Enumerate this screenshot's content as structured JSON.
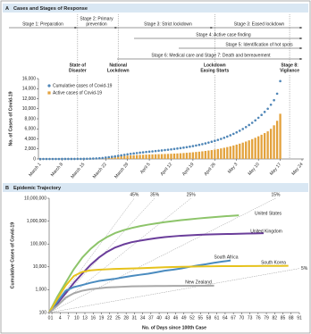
{
  "chart_data": [
    {
      "type": "combo",
      "panel": "A",
      "title": "Cases and Stages of Response",
      "y_label": "No. of Cases of Covid-19",
      "stages": [
        [
          "Stage 1: Preparation"
        ],
        [
          "Stage 2: Primary",
          "prevention"
        ],
        [
          "Stage 3: Strict lockdown"
        ],
        [
          "Stage 3: Eased lockdown"
        ],
        [
          "Stage 4: Active case finding"
        ],
        [
          "Stage 5: Identification of hot spots"
        ],
        [
          "Stage 6: Medical care and Stage 7: Death and bereavement"
        ]
      ],
      "events": [
        [
          "State of",
          "Disaster"
        ],
        [
          "National",
          "Lockdown"
        ],
        [
          "Lockdown",
          "Easing Starts"
        ],
        [
          "Stage 8:",
          "Vigilance"
        ]
      ],
      "categories": [
        "March 1",
        null,
        null,
        null,
        null,
        null,
        null,
        "March 8",
        null,
        null,
        null,
        null,
        null,
        null,
        "March 15",
        null,
        null,
        null,
        null,
        null,
        null,
        "March 22",
        null,
        null,
        null,
        null,
        null,
        null,
        "March 29",
        null,
        null,
        null,
        null,
        null,
        null,
        "April 5",
        null,
        null,
        null,
        null,
        null,
        null,
        "April 12",
        null,
        null,
        null,
        null,
        null,
        null,
        "April 19",
        null,
        null,
        null,
        null,
        null,
        null,
        "April 26",
        null,
        null,
        null,
        null,
        null,
        null,
        "May 3",
        null,
        null,
        null,
        null,
        null,
        null,
        "May 10",
        null,
        null,
        null,
        null,
        null,
        null,
        "May 17",
        null,
        null,
        null,
        null,
        null,
        null,
        "May 24"
      ],
      "series": [
        {
          "name": "Cumulative cases of Covid-19",
          "type": "line",
          "color": "#4f86b7",
          "values": [
            0,
            0,
            0,
            0,
            1,
            1,
            2,
            3,
            4,
            6,
            8,
            10,
            14,
            20,
            30,
            45,
            60,
            85,
            110,
            150,
            200,
            270,
            350,
            430,
            520,
            620,
            720,
            820,
            930,
            1020,
            1100,
            1180,
            1250,
            1320,
            1390,
            1450,
            1510,
            1570,
            1640,
            1700,
            1770,
            1840,
            1910,
            1990,
            2070,
            2160,
            2250,
            2350,
            2450,
            2560,
            2680,
            2810,
            2950,
            3100,
            3260,
            3430,
            3610,
            3800,
            4000,
            4220,
            4460,
            4720,
            5000,
            5300,
            5620,
            5970,
            6350,
            6760,
            7200,
            7680,
            8200,
            8760,
            9360,
            10000,
            10800,
            11700,
            13000,
            15500,
            null,
            null,
            null,
            null,
            null,
            null,
            null
          ]
        },
        {
          "name": "Active cases of Covid-19",
          "type": "bar",
          "color": "#e3a23c",
          "values": [
            0,
            0,
            0,
            0,
            1,
            1,
            2,
            3,
            4,
            6,
            8,
            10,
            14,
            20,
            30,
            45,
            58,
            80,
            100,
            135,
            180,
            240,
            300,
            360,
            420,
            480,
            540,
            600,
            660,
            700,
            740,
            780,
            810,
            840,
            870,
            890,
            910,
            930,
            950,
            970,
            990,
            1010,
            1040,
            1070,
            1100,
            1140,
            1180,
            1230,
            1280,
            1330,
            1390,
            1450,
            1520,
            1600,
            1680,
            1770,
            1870,
            1980,
            2100,
            2230,
            2370,
            2520,
            2680,
            2860,
            3050,
            3250,
            3470,
            3700,
            3950,
            4220,
            4510,
            4820,
            5150,
            5500,
            6000,
            6700,
            7600,
            9000,
            null,
            null,
            null,
            null,
            null,
            null,
            null
          ]
        }
      ],
      "ylim": [
        0,
        16000
      ],
      "yticks": [
        0,
        {
          "value": 2000,
          "label": "2,000"
        },
        {
          "value": 4000,
          "label": "4,000"
        },
        {
          "value": 6000,
          "label": "6,000"
        },
        {
          "value": 8000,
          "label": "8,000"
        },
        {
          "value": 10000,
          "label": "10,000"
        },
        {
          "value": 12000,
          "label": "12,000"
        },
        {
          "value": 14000,
          "label": "14,000"
        },
        {
          "value": 16000,
          "label": "16,000"
        }
      ],
      "legend": "upper left"
    },
    {
      "type": "line",
      "panel": "B",
      "title": "Epidemic Trajectory",
      "x_label": "No. of Days since 100th Case",
      "y_label": "Cumulative Cases of Covid-19",
      "log_y": true,
      "xlim": [
        0,
        91
      ],
      "xticks": [
        0,
        1,
        4,
        7,
        10,
        13,
        16,
        19,
        22,
        25,
        28,
        31,
        34,
        37,
        40,
        43,
        46,
        49,
        52,
        55,
        58,
        61,
        64,
        67,
        70,
        73,
        76,
        79,
        82,
        85,
        88,
        91
      ],
      "ylim": [
        100,
        10000000
      ],
      "yticks": [
        100,
        {
          "value": 1000,
          "label": "1,000"
        },
        {
          "value": 10000,
          "label": "10,000"
        },
        {
          "value": 100000,
          "label": "100,000"
        },
        {
          "value": 1000000,
          "label": "1,000,000"
        },
        {
          "value": 10000000,
          "label": "10,000,000"
        }
      ],
      "reference_lines": {
        "values": [
          45,
          35,
          25,
          15,
          5
        ],
        "value_labels": [
          "45%",
          "35%",
          "25%",
          "15%",
          "5%"
        ],
        "color": "#9a9a9a"
      },
      "series": [
        {
          "name": "United States",
          "color": "#8dc46a",
          "x": [
            0,
            3,
            6,
            9,
            12,
            15,
            18,
            21,
            24,
            27,
            30,
            33,
            36,
            39,
            42,
            45,
            48,
            51,
            54,
            57,
            60,
            63,
            66,
            69
          ],
          "values": [
            100,
            500,
            2000,
            8000,
            25000,
            60000,
            120000,
            200000,
            300000,
            400000,
            500000,
            600000,
            700000,
            800000,
            900000,
            1000000,
            1100000,
            1200000,
            1300000,
            1400000,
            1500000,
            1600000,
            1700000,
            1800000
          ]
        },
        {
          "name": "United Kingdom",
          "color": "#6a3d9a",
          "x": [
            0,
            3,
            6,
            9,
            12,
            15,
            18,
            21,
            24,
            27,
            30,
            33,
            36,
            39,
            42,
            45,
            48,
            51,
            54,
            57,
            60,
            63,
            66,
            69,
            72,
            75,
            78
          ],
          "values": [
            100,
            250,
            700,
            2000,
            5000,
            12000,
            25000,
            45000,
            70000,
            95000,
            120000,
            140000,
            160000,
            180000,
            200000,
            215000,
            230000,
            240000,
            250000,
            258000,
            265000,
            270000,
            275000,
            280000,
            285000,
            290000,
            295000
          ]
        },
        {
          "name": "South Africa",
          "color": "#4a8bbf",
          "x": [
            0,
            3,
            6,
            9,
            12,
            15,
            18,
            21,
            24,
            27,
            30,
            33,
            36,
            39,
            42,
            45,
            48,
            51,
            54,
            57,
            60,
            63,
            66
          ],
          "values": [
            100,
            300,
            900,
            1300,
            1600,
            2000,
            2400,
            2700,
            3000,
            3500,
            4000,
            4500,
            5000,
            5800,
            6800,
            7500,
            8500,
            10000,
            11500,
            13000,
            15000,
            17000,
            19000
          ]
        },
        {
          "name": "South Korea",
          "color": "#e6c21c",
          "x": [
            0,
            3,
            6,
            9,
            12,
            15,
            18,
            21,
            24,
            27,
            30,
            33,
            36,
            39,
            42,
            45,
            48,
            51,
            54,
            57,
            60,
            63,
            66,
            69,
            72,
            75,
            78,
            81,
            84,
            87
          ],
          "values": [
            100,
            400,
            1500,
            4000,
            6000,
            7000,
            7500,
            7800,
            8100,
            8300,
            8500,
            8700,
            9000,
            9300,
            9600,
            9800,
            10000,
            10200,
            10400,
            10500,
            10600,
            10700,
            10750,
            10800,
            10850,
            10900,
            10950,
            11000,
            11050,
            11100
          ]
        },
        {
          "name": "New Zealand",
          "color": "#a8a8a8",
          "x": [
            0,
            3,
            6,
            9,
            12,
            15,
            18,
            21,
            24,
            27,
            30,
            33,
            36,
            39,
            42,
            45,
            48,
            51,
            54,
            57,
            60
          ],
          "values": [
            100,
            200,
            450,
            700,
            900,
            1050,
            1150,
            1250,
            1300,
            1350,
            1400,
            1420,
            1440,
            1450,
            1460,
            1470,
            1475,
            1480,
            1485,
            1490,
            1495
          ]
        }
      ]
    }
  ]
}
